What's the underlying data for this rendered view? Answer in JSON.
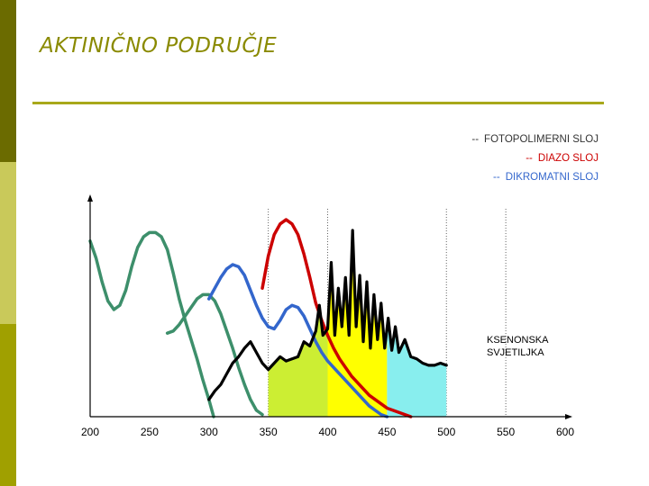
{
  "slide": {
    "title": "AKTINIČNO PODRUČJE"
  },
  "chart_data": {
    "type": "line",
    "title": "AKTINIČNO PODRUČJE",
    "xlabel": "",
    "ylabel": "",
    "xlim": [
      200,
      600
    ],
    "ylim": [
      0,
      100
    ],
    "x_ticks": [
      200,
      250,
      300,
      350,
      400,
      450,
      500,
      550,
      600
    ],
    "vertical_gridlines": [
      350,
      400,
      500,
      550
    ],
    "grid": "dotted vertical lines",
    "legend_position": "top-right",
    "legend": [
      {
        "dash": "--",
        "label": "FOTOPOLIMERNI SLOJ",
        "color": "#333333"
      },
      {
        "dash": "--",
        "label": "DIAZO SLOJ",
        "color": "#cc0000"
      },
      {
        "dash": "--",
        "label": "DIKROMATNI SLOJ",
        "color": "#3366cc"
      }
    ],
    "series": [
      {
        "color": "#3d8f6b",
        "points": [
          [
            200,
            82
          ],
          [
            205,
            74
          ],
          [
            210,
            63
          ],
          [
            215,
            54
          ],
          [
            220,
            50
          ],
          [
            225,
            52
          ],
          [
            230,
            59
          ],
          [
            235,
            70
          ],
          [
            240,
            79
          ],
          [
            245,
            84
          ],
          [
            250,
            86
          ],
          [
            255,
            86
          ],
          [
            260,
            84
          ],
          [
            265,
            78
          ],
          [
            270,
            67
          ],
          [
            275,
            55
          ],
          [
            280,
            45
          ],
          [
            285,
            36
          ],
          [
            290,
            27
          ],
          [
            295,
            17
          ],
          [
            300,
            8
          ],
          [
            302,
            4
          ],
          [
            304,
            0
          ]
        ]
      },
      {
        "color": "#3d8f6b",
        "points": [
          [
            265,
            39
          ],
          [
            270,
            40
          ],
          [
            275,
            43
          ],
          [
            280,
            47
          ],
          [
            285,
            51
          ],
          [
            290,
            55
          ],
          [
            295,
            57
          ],
          [
            300,
            57
          ],
          [
            305,
            54
          ],
          [
            310,
            48
          ],
          [
            315,
            40
          ],
          [
            320,
            32
          ],
          [
            325,
            23
          ],
          [
            330,
            15
          ],
          [
            335,
            8
          ],
          [
            340,
            3
          ],
          [
            345,
            1
          ]
        ]
      },
      {
        "color": "#cc0000",
        "points": [
          [
            345,
            60
          ],
          [
            350,
            75
          ],
          [
            355,
            85
          ],
          [
            360,
            90
          ],
          [
            365,
            92
          ],
          [
            370,
            90
          ],
          [
            375,
            85
          ],
          [
            380,
            76
          ],
          [
            385,
            65
          ],
          [
            390,
            53
          ],
          [
            395,
            45
          ],
          [
            400,
            38
          ],
          [
            405,
            32
          ],
          [
            410,
            27
          ],
          [
            415,
            23
          ],
          [
            420,
            19
          ],
          [
            425,
            16
          ],
          [
            430,
            13
          ],
          [
            435,
            10
          ],
          [
            440,
            8
          ],
          [
            445,
            6
          ],
          [
            450,
            4
          ],
          [
            455,
            3
          ],
          [
            460,
            2
          ],
          [
            465,
            1
          ],
          [
            470,
            0
          ]
        ]
      },
      {
        "color": "#3366cc",
        "points": [
          [
            300,
            55
          ],
          [
            305,
            60
          ],
          [
            310,
            65
          ],
          [
            315,
            69
          ],
          [
            320,
            71
          ],
          [
            325,
            70
          ],
          [
            330,
            66
          ],
          [
            335,
            59
          ],
          [
            340,
            52
          ],
          [
            345,
            46
          ],
          [
            350,
            42
          ],
          [
            355,
            41
          ],
          [
            360,
            45
          ],
          [
            365,
            50
          ],
          [
            370,
            52
          ],
          [
            375,
            51
          ],
          [
            380,
            47
          ],
          [
            385,
            41
          ],
          [
            390,
            35
          ],
          [
            395,
            30
          ],
          [
            400,
            26
          ],
          [
            405,
            23
          ],
          [
            410,
            20
          ],
          [
            415,
            17
          ],
          [
            420,
            14
          ],
          [
            425,
            11
          ],
          [
            430,
            8
          ],
          [
            435,
            5
          ],
          [
            440,
            3
          ],
          [
            445,
            1
          ],
          [
            450,
            0
          ]
        ]
      }
    ],
    "xenon_lamp": {
      "label": "KSENONSKA SVJETILJKA",
      "color": "#000000",
      "fill_colors": [
        "#ccee33",
        "#ffff00",
        "#88eeee"
      ],
      "fill_breaks": [
        350,
        400,
        450,
        500
      ],
      "points": [
        [
          300,
          8
        ],
        [
          305,
          12
        ],
        [
          310,
          15
        ],
        [
          315,
          20
        ],
        [
          320,
          25
        ],
        [
          325,
          28
        ],
        [
          330,
          32
        ],
        [
          335,
          35
        ],
        [
          340,
          30
        ],
        [
          345,
          25
        ],
        [
          350,
          22
        ],
        [
          355,
          25
        ],
        [
          360,
          28
        ],
        [
          365,
          26
        ],
        [
          370,
          27
        ],
        [
          375,
          28
        ],
        [
          380,
          35
        ],
        [
          385,
          33
        ],
        [
          390,
          40
        ],
        [
          393,
          52
        ],
        [
          396,
          38
        ],
        [
          400,
          41
        ],
        [
          403,
          72
        ],
        [
          406,
          38
        ],
        [
          409,
          60
        ],
        [
          412,
          42
        ],
        [
          415,
          65
        ],
        [
          418,
          38
        ],
        [
          421,
          87
        ],
        [
          424,
          42
        ],
        [
          427,
          66
        ],
        [
          430,
          35
        ],
        [
          433,
          63
        ],
        [
          436,
          32
        ],
        [
          439,
          57
        ],
        [
          442,
          36
        ],
        [
          445,
          53
        ],
        [
          448,
          32
        ],
        [
          451,
          46
        ],
        [
          454,
          31
        ],
        [
          457,
          42
        ],
        [
          460,
          30
        ],
        [
          465,
          36
        ],
        [
          470,
          28
        ],
        [
          475,
          27
        ],
        [
          480,
          25
        ],
        [
          485,
          24
        ],
        [
          490,
          24
        ],
        [
          495,
          25
        ],
        [
          500,
          24
        ]
      ]
    }
  }
}
